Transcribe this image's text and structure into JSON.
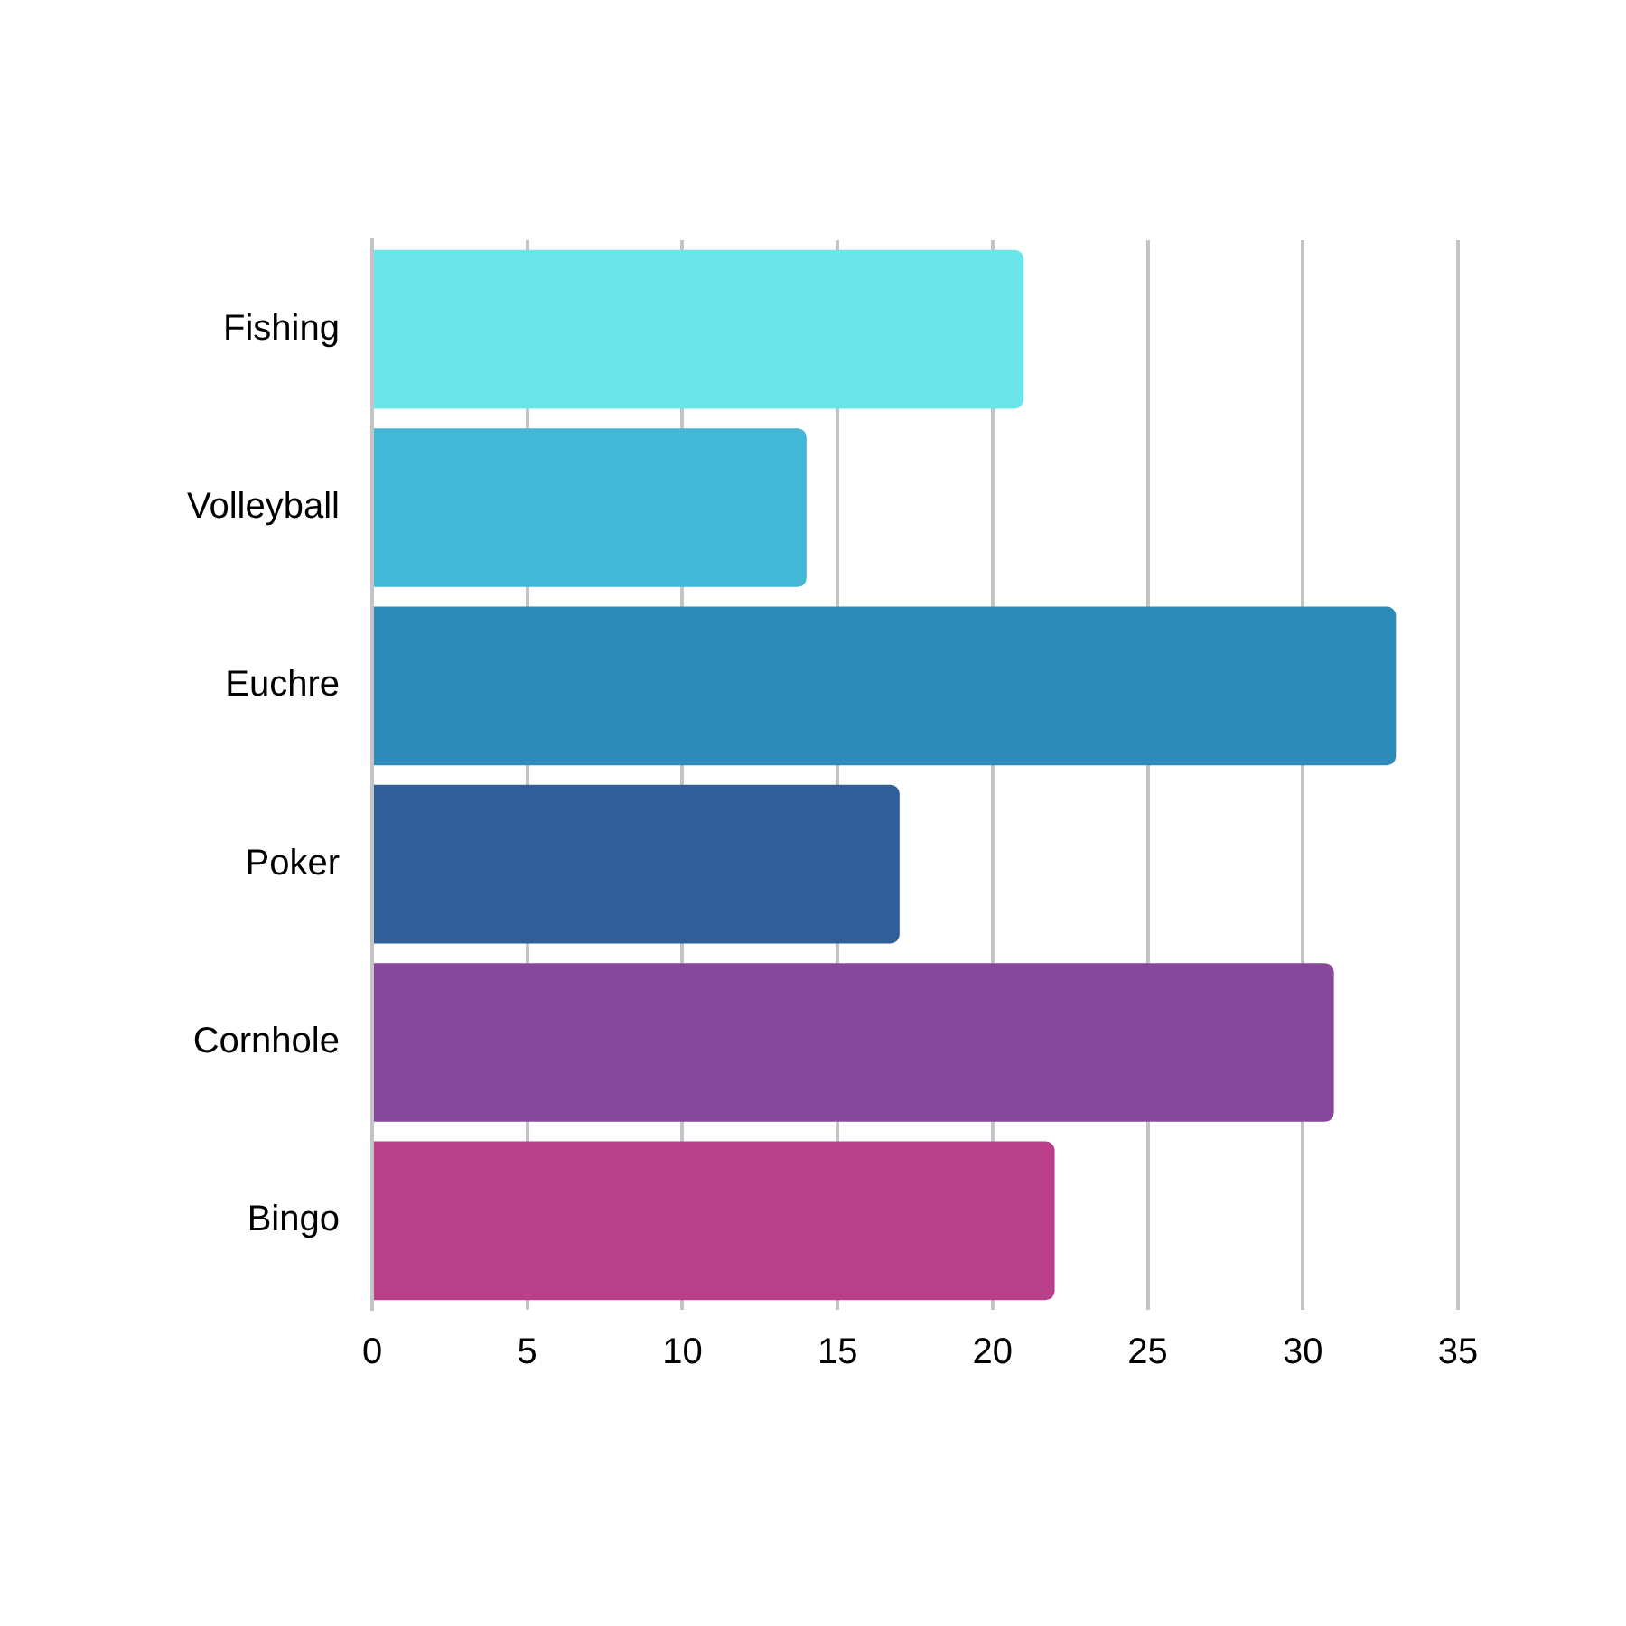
{
  "chart_data": {
    "type": "bar",
    "orientation": "horizontal",
    "categories": [
      "Fishing",
      "Volleyball",
      "Euchre",
      "Poker",
      "Cornhole",
      "Bingo"
    ],
    "values": [
      21,
      14,
      33,
      17,
      31,
      22
    ],
    "colors": [
      "#6ae5e9",
      "#42b7d6",
      "#2e8bb9",
      "#2e5f98",
      "#87489b",
      "#ba3f8a"
    ],
    "xlim": [
      0,
      35
    ],
    "xticks": [
      0,
      5,
      10,
      15,
      20,
      25,
      30,
      35
    ],
    "grid": "x",
    "legend": false
  }
}
